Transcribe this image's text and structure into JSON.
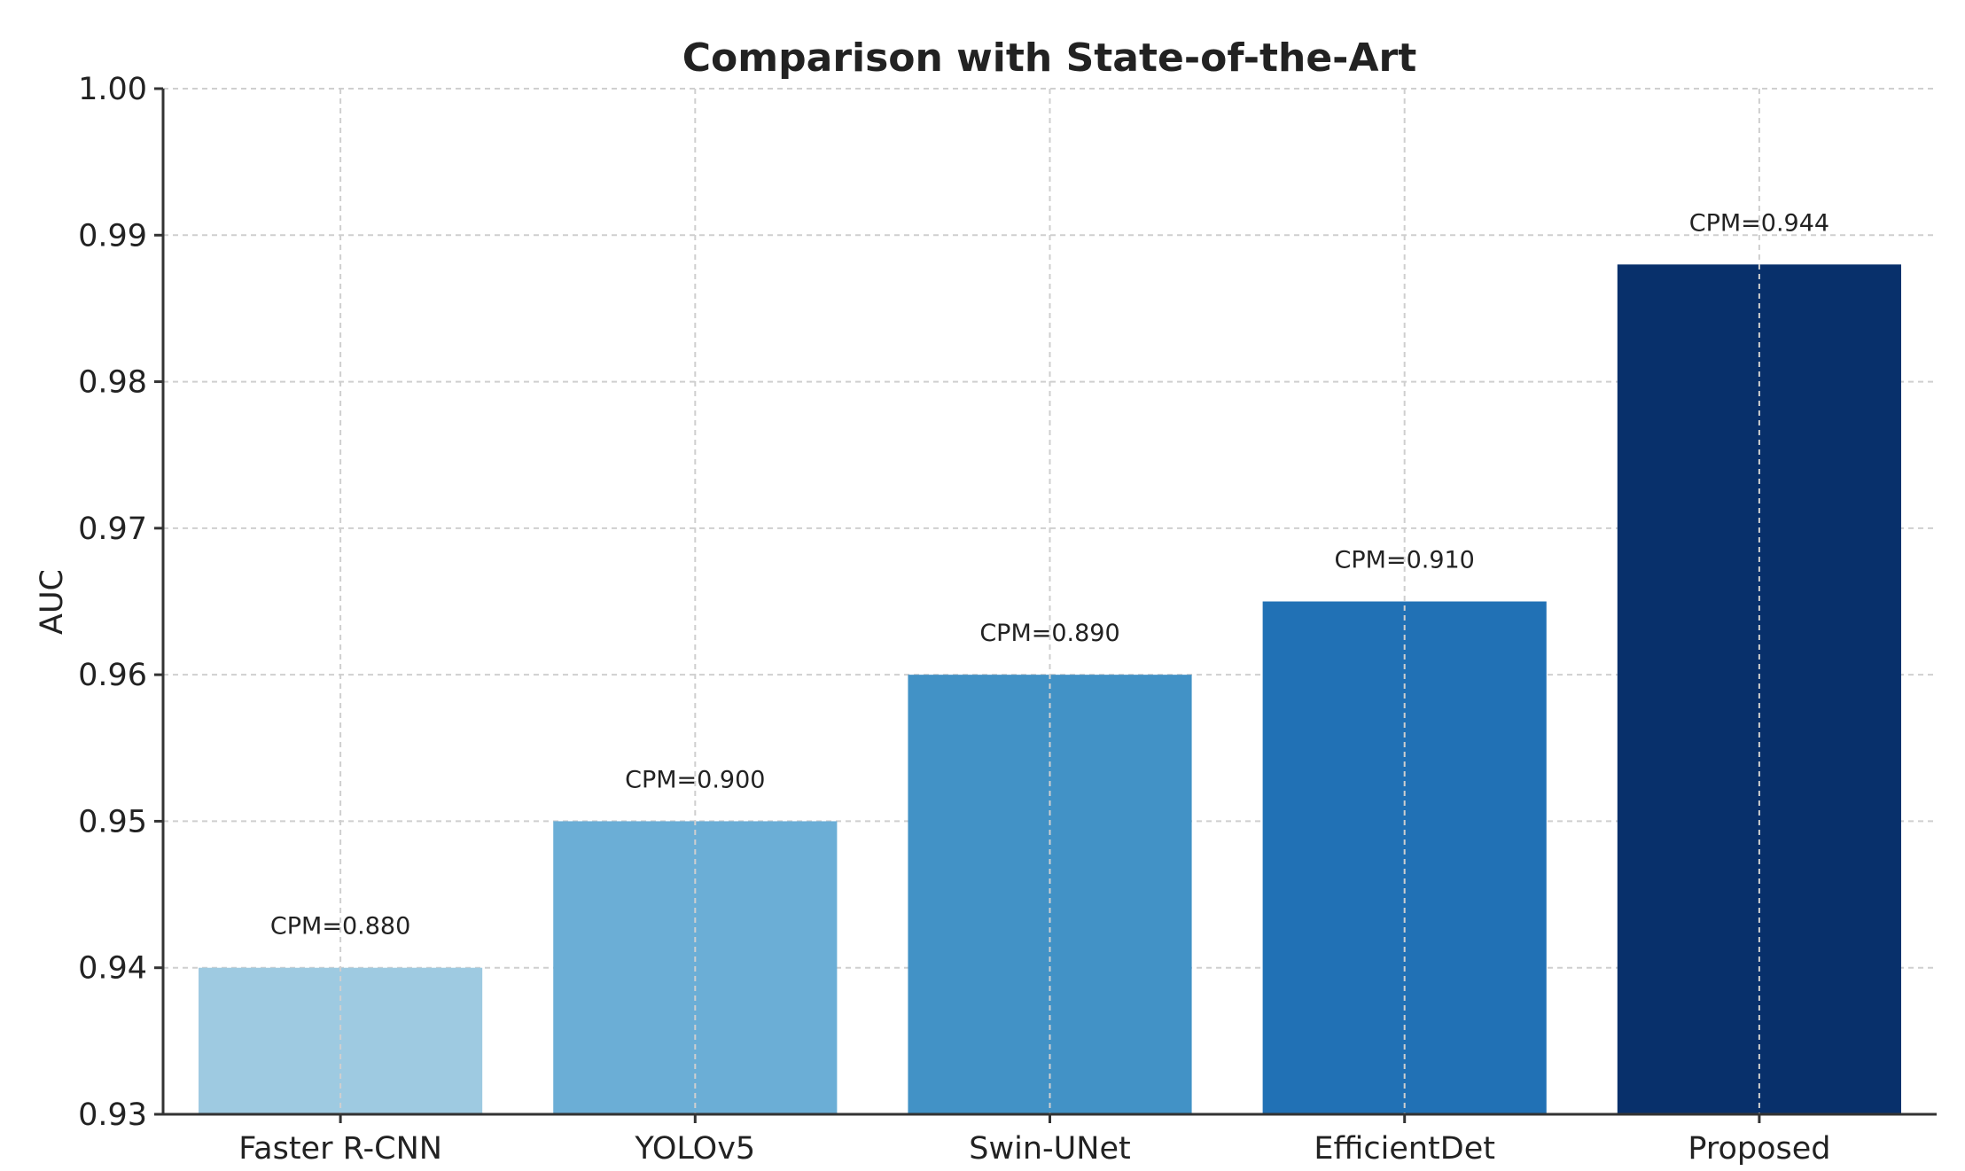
{
  "chart_data": {
    "type": "bar",
    "title": "Comparison with State-of-the-Art",
    "xlabel": "",
    "ylabel": "AUC",
    "ylim": [
      0.93,
      1.0
    ],
    "yticks": [
      "0.93",
      "0.94",
      "0.95",
      "0.96",
      "0.97",
      "0.98",
      "0.99",
      "1.00"
    ],
    "categories": [
      "Faster R-CNN",
      "YOLOv5",
      "Swin-UNet",
      "EfficientDet",
      "Proposed"
    ],
    "values": [
      0.94,
      0.95,
      0.96,
      0.965,
      0.988
    ],
    "data_labels": [
      "CPM=0.880",
      "CPM=0.900",
      "CPM=0.890",
      "CPM=0.910",
      "CPM=0.944"
    ],
    "bar_colors": [
      "#9ecae1",
      "#6baed6",
      "#4292c6",
      "#2171b5",
      "#08306b"
    ],
    "grid": true,
    "legend": "none"
  }
}
